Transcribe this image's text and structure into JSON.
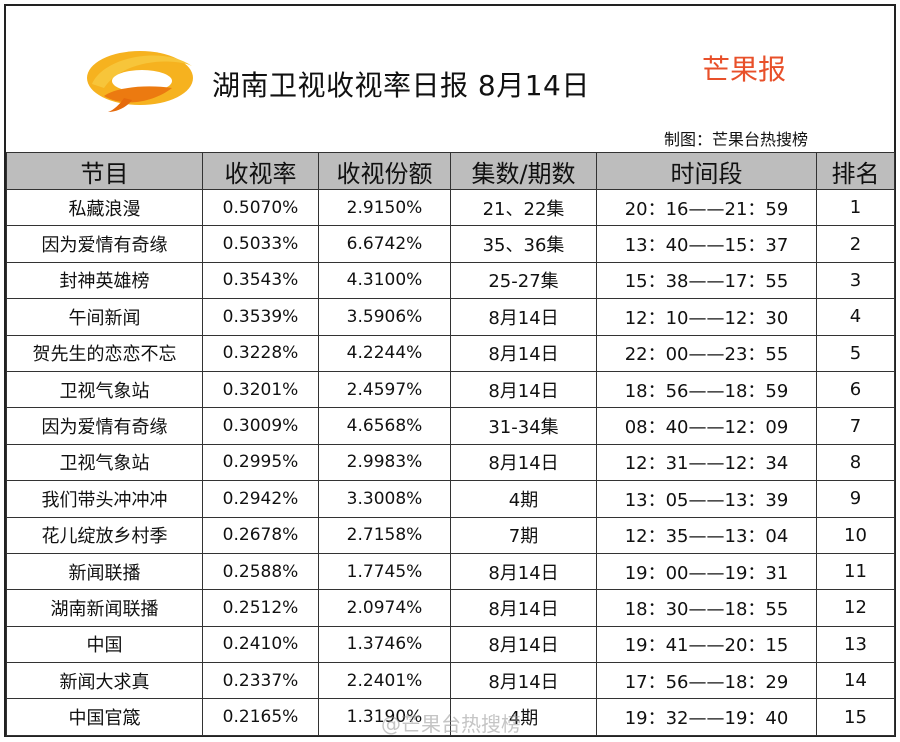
{
  "header": {
    "title": "湖南卫视收视率日报 8月14日",
    "brand": "芒果报",
    "credit": "制图：芒果台热搜榜",
    "logo_icon": "hunan-tv-logo-icon",
    "colors": {
      "logo_orange": "#f3a21b",
      "logo_deep": "#ec7a10",
      "brand_red": "#e8502a",
      "header_bg": "#bdbdbd"
    }
  },
  "table": {
    "columns": [
      "节目",
      "收视率",
      "收视份额",
      "集数/期数",
      "时间段",
      "排名"
    ],
    "rows": [
      {
        "program": "私藏浪漫",
        "rating": "0.5070%",
        "share": "2.9150%",
        "episode": "21、22集",
        "time": "20：16——21：59",
        "rank": "1"
      },
      {
        "program": "因为爱情有奇缘",
        "rating": "0.5033%",
        "share": "6.6742%",
        "episode": "35、36集",
        "time": "13：40——15：37",
        "rank": "2"
      },
      {
        "program": "封神英雄榜",
        "rating": "0.3543%",
        "share": "4.3100%",
        "episode": "25-27集",
        "time": "15：38——17：55",
        "rank": "3"
      },
      {
        "program": "午间新闻",
        "rating": "0.3539%",
        "share": "3.5906%",
        "episode": "8月14日",
        "time": "12：10——12：30",
        "rank": "4"
      },
      {
        "program": "贺先生的恋恋不忘",
        "rating": "0.3228%",
        "share": "4.2244%",
        "episode": "8月14日",
        "time": "22：00——23：55",
        "rank": "5"
      },
      {
        "program": "卫视气象站",
        "rating": "0.3201%",
        "share": "2.4597%",
        "episode": "8月14日",
        "time": "18：56——18：59",
        "rank": "6"
      },
      {
        "program": "因为爱情有奇缘",
        "rating": "0.3009%",
        "share": "4.6568%",
        "episode": "31-34集",
        "time": "08：40——12：09",
        "rank": "7"
      },
      {
        "program": "卫视气象站",
        "rating": "0.2995%",
        "share": "2.9983%",
        "episode": "8月14日",
        "time": "12：31——12：34",
        "rank": "8"
      },
      {
        "program": "我们带头冲冲冲",
        "rating": "0.2942%",
        "share": "3.3008%",
        "episode": "4期",
        "time": "13：05——13：39",
        "rank": "9"
      },
      {
        "program": "花儿绽放乡村季",
        "rating": "0.2678%",
        "share": "2.7158%",
        "episode": "7期",
        "time": "12：35——13：04",
        "rank": "10"
      },
      {
        "program": "新闻联播",
        "rating": "0.2588%",
        "share": "1.7745%",
        "episode": "8月14日",
        "time": "19：00——19：31",
        "rank": "11"
      },
      {
        "program": "湖南新闻联播",
        "rating": "0.2512%",
        "share": "2.0974%",
        "episode": "8月14日",
        "time": "18：30——18：55",
        "rank": "12"
      },
      {
        "program": "中国",
        "rating": "0.2410%",
        "share": "1.3746%",
        "episode": "8月14日",
        "time": "19：41——20：15",
        "rank": "13"
      },
      {
        "program": "新闻大求真",
        "rating": "0.2337%",
        "share": "2.2401%",
        "episode": "8月14日",
        "time": "17：56——18：29",
        "rank": "14"
      },
      {
        "program": "中国官箴",
        "rating": "0.2165%",
        "share": "1.3190%",
        "episode": "4期",
        "time": "19：32——19：40",
        "rank": "15"
      }
    ]
  },
  "watermark": "@芒果台热搜榜"
}
